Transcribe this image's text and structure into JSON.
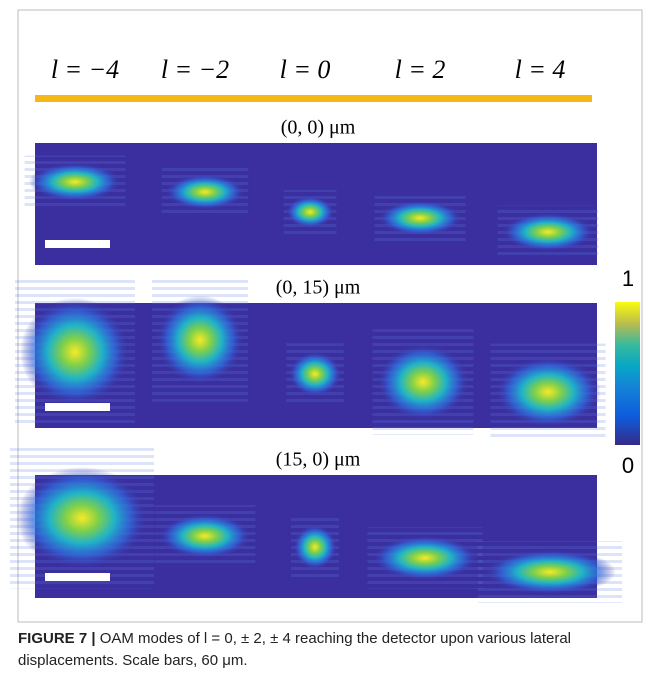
{
  "figure": {
    "mode_labels": [
      "l = −4",
      "l = −2",
      "l = 0",
      "l = 2",
      "l = 4"
    ],
    "panels": [
      {
        "title": "(0, 0) μm"
      },
      {
        "title": "(0, 15) μm"
      },
      {
        "title": "(15, 0) μm"
      }
    ],
    "colorbar": {
      "max": 1,
      "min": 0
    }
  },
  "caption": {
    "label": "FIGURE 7 |",
    "text": "OAM modes of l = 0, ± 2, ± 4 reaching the detector upon various lateral displacements. Scale bars, 60 μm."
  }
}
